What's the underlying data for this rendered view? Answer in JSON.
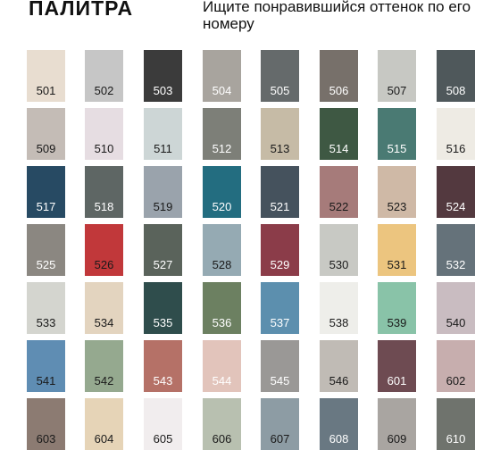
{
  "header": {
    "title": "ПАЛИТРА",
    "subtitle": "Ищите понравившийся оттенок по его номеру"
  },
  "palette": [
    {
      "code": "501",
      "color": "#e8ddd0",
      "text": "#1a1a1a"
    },
    {
      "code": "502",
      "color": "#c6c6c6",
      "text": "#1a1a1a"
    },
    {
      "code": "503",
      "color": "#3b3b3b",
      "text": "#ffffff"
    },
    {
      "code": "504",
      "color": "#a8a49e",
      "text": "#ffffff"
    },
    {
      "code": "505",
      "color": "#656a6b",
      "text": "#ffffff"
    },
    {
      "code": "506",
      "color": "#77706a",
      "text": "#ffffff"
    },
    {
      "code": "507",
      "color": "#c7c8c3",
      "text": "#1a1a1a"
    },
    {
      "code": "508",
      "color": "#4f585b",
      "text": "#ffffff"
    },
    {
      "code": "509",
      "color": "#c4bcb6",
      "text": "#1a1a1a"
    },
    {
      "code": "510",
      "color": "#e6dde2",
      "text": "#1a1a1a"
    },
    {
      "code": "511",
      "color": "#cdd6d6",
      "text": "#1a1a1a"
    },
    {
      "code": "512",
      "color": "#7d7f78",
      "text": "#ffffff"
    },
    {
      "code": "513",
      "color": "#c6bba6",
      "text": "#1a1a1a"
    },
    {
      "code": "514",
      "color": "#3e5843",
      "text": "#ffffff"
    },
    {
      "code": "515",
      "color": "#4a7a73",
      "text": "#ffffff"
    },
    {
      "code": "516",
      "color": "#eeebe4",
      "text": "#1a1a1a"
    },
    {
      "code": "517",
      "color": "#274a63",
      "text": "#ffffff"
    },
    {
      "code": "518",
      "color": "#5e6664",
      "text": "#ffffff"
    },
    {
      "code": "519",
      "color": "#9aa3ac",
      "text": "#1a1a1a"
    },
    {
      "code": "520",
      "color": "#236d80",
      "text": "#ffffff"
    },
    {
      "code": "521",
      "color": "#45525d",
      "text": "#ffffff"
    },
    {
      "code": "522",
      "color": "#a67b7a",
      "text": "#1a1a1a"
    },
    {
      "code": "523",
      "color": "#cfb9a6",
      "text": "#1a1a1a"
    },
    {
      "code": "524",
      "color": "#53393f",
      "text": "#ffffff"
    },
    {
      "code": "525",
      "color": "#8b8781",
      "text": "#ffffff"
    },
    {
      "code": "526",
      "color": "#c1383a",
      "text": "#1a1a1a"
    },
    {
      "code": "527",
      "color": "#5a635b",
      "text": "#ffffff"
    },
    {
      "code": "528",
      "color": "#95aab3",
      "text": "#1a1a1a"
    },
    {
      "code": "529",
      "color": "#8b3c49",
      "text": "#ffffff"
    },
    {
      "code": "530",
      "color": "#c8c9c4",
      "text": "#1a1a1a"
    },
    {
      "code": "531",
      "color": "#ecc57f",
      "text": "#1a1a1a"
    },
    {
      "code": "532",
      "color": "#65727a",
      "text": "#ffffff"
    },
    {
      "code": "533",
      "color": "#d4d5cf",
      "text": "#1a1a1a"
    },
    {
      "code": "534",
      "color": "#e3d4bf",
      "text": "#1a1a1a"
    },
    {
      "code": "535",
      "color": "#2f4d4c",
      "text": "#ffffff"
    },
    {
      "code": "536",
      "color": "#6c8061",
      "text": "#ffffff"
    },
    {
      "code": "537",
      "color": "#5c8fae",
      "text": "#ffffff"
    },
    {
      "code": "538",
      "color": "#eeeeea",
      "text": "#1a1a1a"
    },
    {
      "code": "539",
      "color": "#89c3a8",
      "text": "#1a1a1a"
    },
    {
      "code": "540",
      "color": "#c9bcc1",
      "text": "#1a1a1a"
    },
    {
      "code": "541",
      "color": "#5f8db3",
      "text": "#1a1a1a"
    },
    {
      "code": "542",
      "color": "#95a98f",
      "text": "#1a1a1a"
    },
    {
      "code": "543",
      "color": "#b57167",
      "text": "#ffffff"
    },
    {
      "code": "544",
      "color": "#e2c4bb",
      "text": "#ffffff"
    },
    {
      "code": "545",
      "color": "#9a9896",
      "text": "#ffffff"
    },
    {
      "code": "546",
      "color": "#c0bbb5",
      "text": "#1a1a1a"
    },
    {
      "code": "601",
      "color": "#6e4b52",
      "text": "#ffffff"
    },
    {
      "code": "602",
      "color": "#c7aeae",
      "text": "#1a1a1a"
    },
    {
      "code": "603",
      "color": "#8c7b72",
      "text": "#1a1a1a"
    },
    {
      "code": "604",
      "color": "#e6d4b7",
      "text": "#1a1a1a"
    },
    {
      "code": "605",
      "color": "#f1edee",
      "text": "#1a1a1a"
    },
    {
      "code": "606",
      "color": "#b8c0b0",
      "text": "#1a1a1a"
    },
    {
      "code": "607",
      "color": "#8d9ca4",
      "text": "#1a1a1a"
    },
    {
      "code": "608",
      "color": "#697882",
      "text": "#ffffff"
    },
    {
      "code": "609",
      "color": "#a9a5a1",
      "text": "#1a1a1a"
    },
    {
      "code": "610",
      "color": "#6f736d",
      "text": "#ffffff"
    }
  ]
}
